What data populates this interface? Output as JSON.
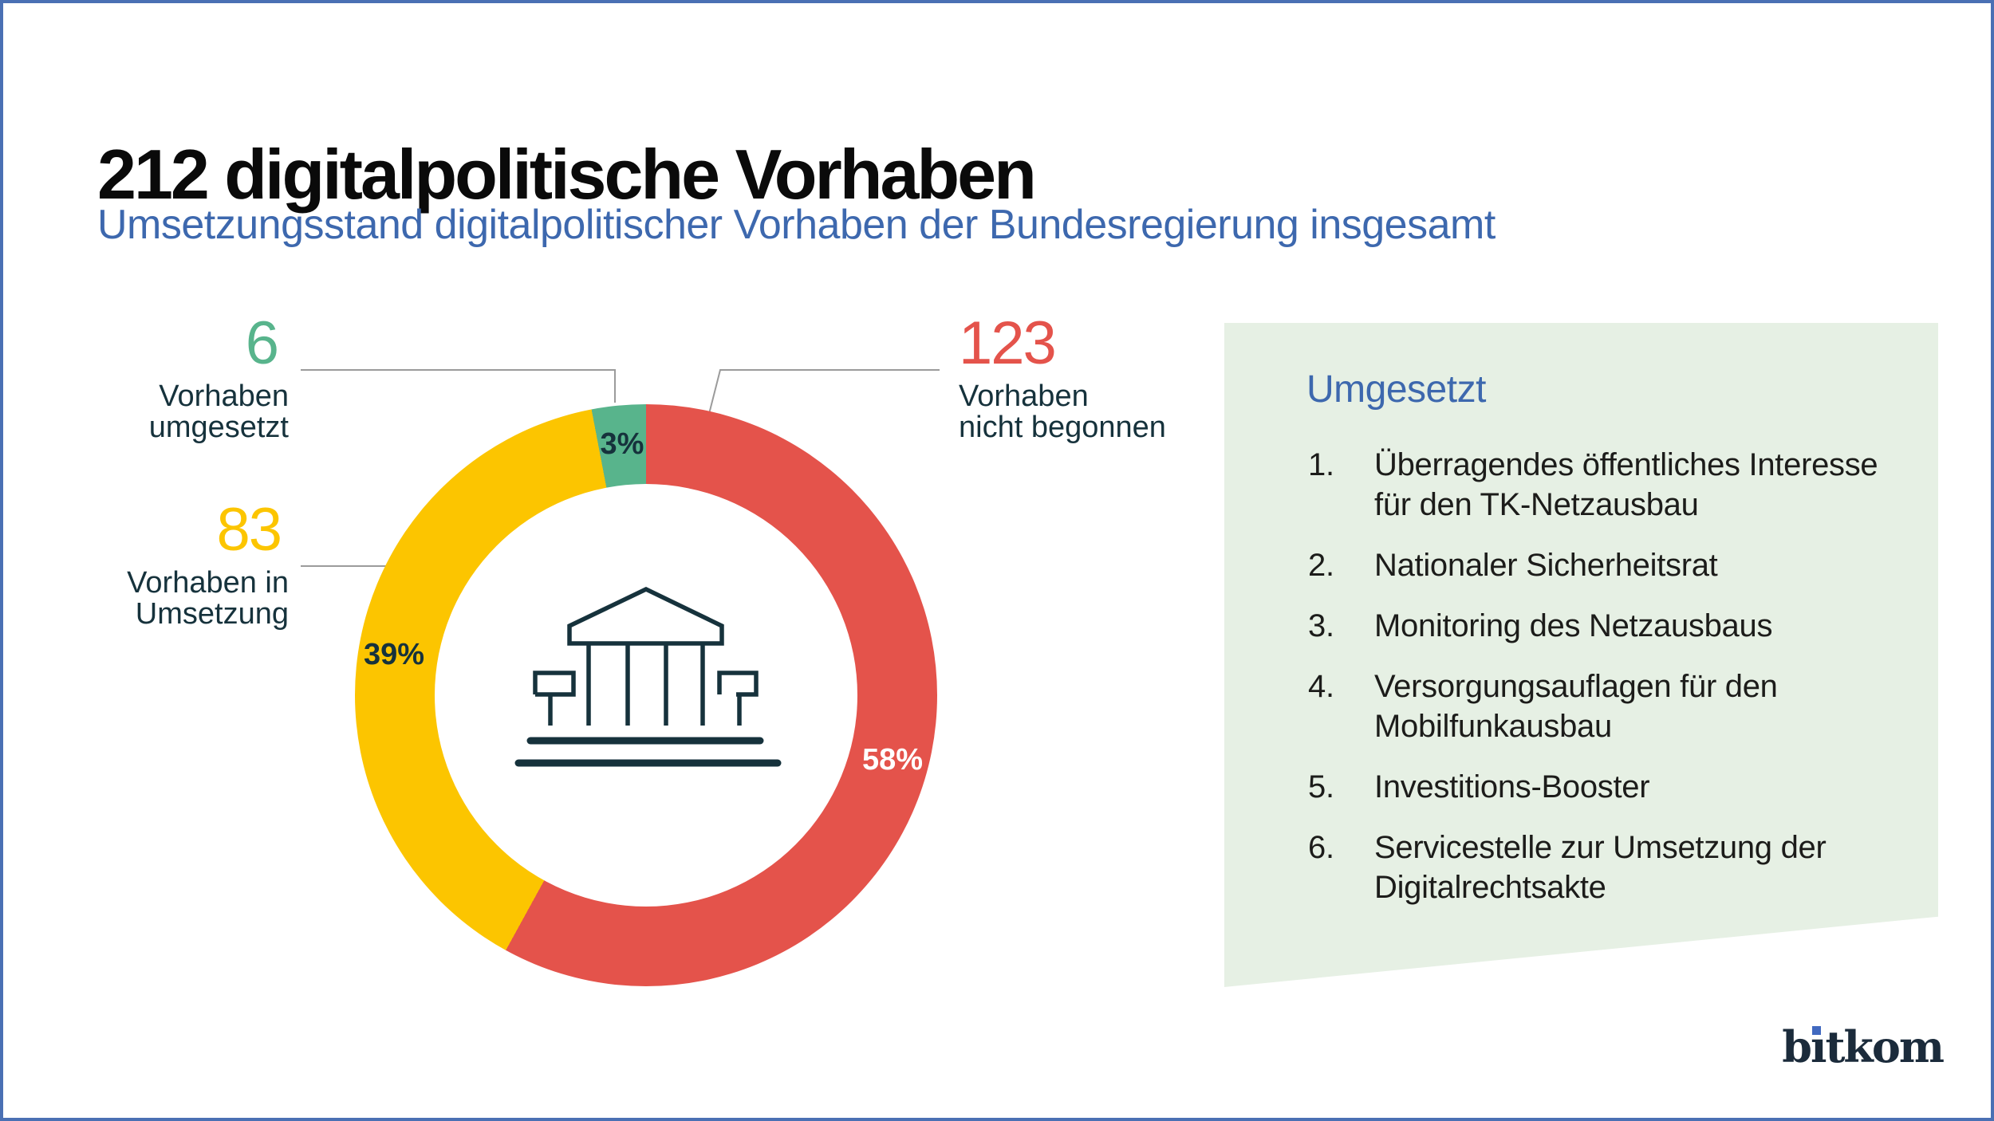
{
  "page": {
    "title": "212 digitalpolitische Vorhaben",
    "subtitle": "Umsetzungsstand digitalpolitischer Vorhaben der Bundesregierung insgesamt",
    "logo_text": "bitkom"
  },
  "chart_data": {
    "type": "pie",
    "donut": true,
    "title": "Umsetzungsstand digitalpolitischer Vorhaben der Bundesregierung insgesamt",
    "total": 212,
    "start_angle_deg": 0,
    "direction": "clockwise",
    "center_icon": "government-building-icon",
    "segments": [
      {
        "label": "Vorhaben nicht begonnen",
        "count": 123,
        "percent": 58,
        "percent_label": "58%",
        "color": "#e4534b"
      },
      {
        "label": "Vorhaben in Umsetzung",
        "count": 83,
        "percent": 39,
        "percent_label": "39%",
        "color": "#fcc500"
      },
      {
        "label": "Vorhaben umgesetzt",
        "count": 6,
        "percent": 3,
        "percent_label": "3%",
        "color": "#58b48c"
      }
    ]
  },
  "callouts": {
    "umgesetzt": {
      "value": "6",
      "line1": "Vorhaben",
      "line2": "umgesetzt"
    },
    "in_umsetzung": {
      "value": "83",
      "line1": "Vorhaben in",
      "line2": "Umsetzung"
    },
    "nicht_begonnen": {
      "value": "123",
      "line1": "Vorhaben",
      "line2": "nicht begonnen"
    }
  },
  "panel": {
    "heading": "Umgesetzt",
    "items": [
      "Überragendes öffentliches Interesse für den TK-Netzausbau",
      "Nationaler Sicherheitsrat",
      "Monitoring des Netzausbaus",
      "Versorgungsauflagen für den Mobilfunkausbau",
      "Investitions-Booster",
      "Servicestelle zur Umsetzung der Digitalrechtsakte"
    ]
  },
  "colors": {
    "border_blue": "#4a70b4",
    "accent_blue": "#3d68ae",
    "red": "#e4534b",
    "yellow": "#fcc500",
    "green": "#58b48c",
    "dark_text": "#16323c",
    "panel_bg": "#e6f0e4",
    "leader_gray": "#9b9b9b",
    "logo_navy": "#1b2b3b"
  }
}
